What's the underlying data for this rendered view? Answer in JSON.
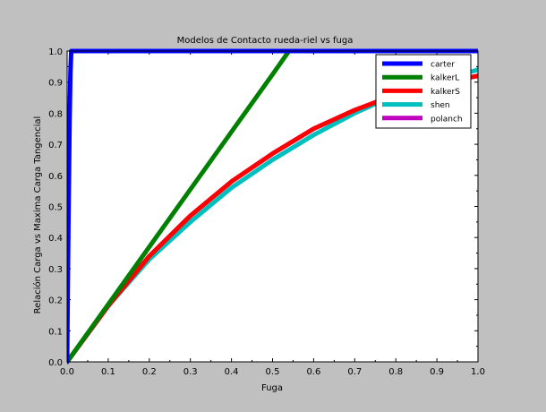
{
  "chart_data": {
    "type": "line",
    "title": "Modelos de Contacto rueda-riel vs fuga",
    "xlabel": "Fuga",
    "ylabel": "Relación Carga vs Maxima Carga Tangencial",
    "xlim": [
      0,
      1
    ],
    "ylim": [
      0,
      1
    ],
    "x_ticks": [
      "0.0",
      "0.1",
      "0.2",
      "0.3",
      "0.4",
      "0.5",
      "0.6",
      "0.7",
      "0.8",
      "0.9",
      "1.0"
    ],
    "y_ticks": [
      "0.0",
      "0.1",
      "0.2",
      "0.3",
      "0.4",
      "0.5",
      "0.6",
      "0.7",
      "0.8",
      "0.9",
      "1.0"
    ],
    "grid": false,
    "legend_position": "top-right",
    "series": [
      {
        "name": "carter",
        "color": "#0000ff",
        "x": [
          0,
          0.002,
          0.004,
          0.006,
          0.008,
          0.01,
          0.015,
          0.02,
          0.05,
          0.1,
          0.2,
          0.3,
          0.4,
          0.5,
          0.6,
          0.7,
          0.8,
          0.9,
          1.0
        ],
        "y": [
          0,
          0.3,
          0.55,
          0.78,
          0.93,
          1.0,
          1.0,
          1.0,
          1.0,
          1.0,
          1.0,
          1.0,
          1.0,
          1.0,
          1.0,
          1.0,
          1.0,
          1.0,
          1.0
        ]
      },
      {
        "name": "kalkerL",
        "color": "#008000",
        "x": [
          0,
          0.1,
          0.2,
          0.3,
          0.4,
          0.5,
          0.54,
          0.6,
          0.7,
          0.8,
          0.9,
          1.0
        ],
        "y": [
          0,
          0.185,
          0.37,
          0.555,
          0.74,
          0.925,
          1.0,
          1.0,
          1.0,
          1.0,
          1.0,
          1.0
        ]
      },
      {
        "name": "kalkerS",
        "color": "#ff0000",
        "x": [
          0,
          0.1,
          0.2,
          0.3,
          0.4,
          0.5,
          0.6,
          0.7,
          0.8,
          0.9,
          1.0
        ],
        "y": [
          0,
          0.18,
          0.34,
          0.47,
          0.58,
          0.67,
          0.75,
          0.81,
          0.86,
          0.895,
          0.92
        ]
      },
      {
        "name": "shen",
        "color": "#00bfbf",
        "x": [
          0,
          0.1,
          0.2,
          0.3,
          0.4,
          0.5,
          0.6,
          0.7,
          0.8,
          0.9,
          1.0
        ],
        "y": [
          0,
          0.18,
          0.33,
          0.45,
          0.56,
          0.65,
          0.73,
          0.8,
          0.86,
          0.9,
          0.94
        ]
      },
      {
        "name": "polanch",
        "color": "#bf00bf",
        "x": [
          0,
          0.1,
          0.2,
          0.3,
          0.4,
          0.5,
          0.6,
          0.7,
          0.8,
          0.9,
          1.0
        ],
        "y": [
          0,
          0.18,
          0.34,
          0.47,
          0.58,
          0.67,
          0.75,
          0.81,
          0.86,
          0.895,
          0.92
        ]
      }
    ]
  }
}
